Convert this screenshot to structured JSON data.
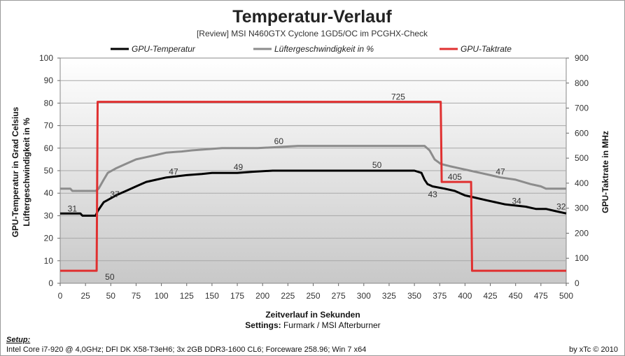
{
  "chart_data": {
    "type": "line",
    "title": "Temperatur-Verlauf",
    "subtitle": "[Review]  MSI N460GTX  Cyclone  1GD5/OC  im  PCGHX-Check",
    "xlabel": "Zeitverlauf in Sekunden",
    "settings_label": "Settings:",
    "settings_value": " Furmark / MSI Afterburner",
    "ylabel_left_line1": "GPU-Temperatur  in Grad Celsius",
    "ylabel_left_line2": "Lüftergeschwindigkeit  in %",
    "ylabel_right": "GPU-Taktrate in MHz",
    "xlim": [
      0,
      500
    ],
    "ylim": [
      0,
      100
    ],
    "y2lim": [
      0,
      900
    ],
    "x_ticks": [
      0,
      25,
      50,
      75,
      100,
      125,
      150,
      175,
      200,
      225,
      250,
      275,
      300,
      325,
      350,
      375,
      400,
      425,
      450,
      475,
      500
    ],
    "y_ticks": [
      0,
      10,
      20,
      30,
      40,
      50,
      60,
      70,
      80,
      90,
      100
    ],
    "y2_ticks": [
      0,
      100,
      200,
      300,
      400,
      500,
      600,
      700,
      800,
      900
    ],
    "grid": true,
    "legend_position": "top",
    "series": [
      {
        "name": "GPU-Temperatur",
        "axis": "left",
        "color": "#000000",
        "points": [
          [
            0,
            31
          ],
          [
            20,
            31
          ],
          [
            22,
            30
          ],
          [
            35,
            30
          ],
          [
            37,
            32
          ],
          [
            40,
            34
          ],
          [
            43,
            36
          ],
          [
            47,
            37
          ],
          [
            55,
            39
          ],
          [
            65,
            41
          ],
          [
            75,
            43
          ],
          [
            85,
            45
          ],
          [
            95,
            46
          ],
          [
            105,
            47
          ],
          [
            115,
            47.5
          ],
          [
            125,
            48
          ],
          [
            140,
            48.5
          ],
          [
            150,
            49
          ],
          [
            175,
            49
          ],
          [
            190,
            49.5
          ],
          [
            210,
            50
          ],
          [
            250,
            50
          ],
          [
            300,
            50
          ],
          [
            325,
            50
          ],
          [
            350,
            50
          ],
          [
            357,
            49
          ],
          [
            360,
            46
          ],
          [
            363,
            44
          ],
          [
            368,
            43
          ],
          [
            380,
            42
          ],
          [
            390,
            41
          ],
          [
            395,
            40
          ],
          [
            400,
            39
          ],
          [
            410,
            38
          ],
          [
            420,
            37
          ],
          [
            430,
            36
          ],
          [
            440,
            35
          ],
          [
            450,
            34.5
          ],
          [
            460,
            34
          ],
          [
            470,
            33
          ],
          [
            480,
            33
          ],
          [
            490,
            32
          ],
          [
            500,
            31
          ]
        ]
      },
      {
        "name": "Lüftergeschwindigkeit in %",
        "axis": "left",
        "color": "#8c8c8c",
        "points": [
          [
            0,
            42
          ],
          [
            10,
            42
          ],
          [
            12,
            41
          ],
          [
            35,
            41
          ],
          [
            38,
            42
          ],
          [
            43,
            46
          ],
          [
            47,
            49
          ],
          [
            55,
            51
          ],
          [
            65,
            53
          ],
          [
            75,
            55
          ],
          [
            85,
            56
          ],
          [
            95,
            57
          ],
          [
            105,
            58
          ],
          [
            120,
            58.5
          ],
          [
            130,
            59
          ],
          [
            145,
            59.5
          ],
          [
            160,
            60
          ],
          [
            195,
            60
          ],
          [
            215,
            60.5
          ],
          [
            235,
            61
          ],
          [
            250,
            61
          ],
          [
            300,
            61
          ],
          [
            350,
            61
          ],
          [
            360,
            61
          ],
          [
            365,
            59
          ],
          [
            370,
            55
          ],
          [
            376,
            53
          ],
          [
            385,
            52
          ],
          [
            395,
            51
          ],
          [
            405,
            50
          ],
          [
            415,
            49
          ],
          [
            425,
            48
          ],
          [
            435,
            47
          ],
          [
            450,
            46
          ],
          [
            465,
            44
          ],
          [
            475,
            43
          ],
          [
            480,
            42
          ],
          [
            500,
            42
          ]
        ]
      },
      {
        "name": "GPU-Taktrate",
        "axis": "right",
        "color": "#e03030",
        "points": [
          [
            0,
            50
          ],
          [
            36,
            50
          ],
          [
            37,
            725
          ],
          [
            376,
            725
          ],
          [
            377,
            405
          ],
          [
            406,
            405
          ],
          [
            407,
            50
          ],
          [
            500,
            50
          ]
        ]
      }
    ],
    "annotations": [
      {
        "text": "31",
        "x": 12,
        "y": 33,
        "axis": "left"
      },
      {
        "text": "37",
        "x": 54,
        "y": 39.5,
        "axis": "left"
      },
      {
        "text": "47",
        "x": 112,
        "y": 49.5,
        "axis": "left"
      },
      {
        "text": "49",
        "x": 176,
        "y": 51.5,
        "axis": "left"
      },
      {
        "text": "60",
        "x": 216,
        "y": 63,
        "axis": "left"
      },
      {
        "text": "50",
        "x": 313,
        "y": 52.5,
        "axis": "left"
      },
      {
        "text": "43",
        "x": 368,
        "y": 39.5,
        "axis": "left"
      },
      {
        "text": "47",
        "x": 435,
        "y": 49.5,
        "axis": "left"
      },
      {
        "text": "34",
        "x": 451,
        "y": 36.5,
        "axis": "left"
      },
      {
        "text": "32",
        "x": 495,
        "y": 34,
        "axis": "left"
      },
      {
        "text": "725",
        "x": 334,
        "y": 745,
        "axis": "right"
      },
      {
        "text": "405",
        "x": 390,
        "y": 425,
        "axis": "right"
      },
      {
        "text": "50",
        "x": 49,
        "y": 25,
        "axis": "right"
      }
    ]
  },
  "footer": {
    "setup_label": "Setup:",
    "setup_text": "Intel Core i7-920 @ 4,0GHz; DFI DK X58-T3eH6; 3x 2GB DDR3-1600 CL6; Forceware 258.96; Win 7 x64",
    "credit": "by xTc © 2010"
  }
}
